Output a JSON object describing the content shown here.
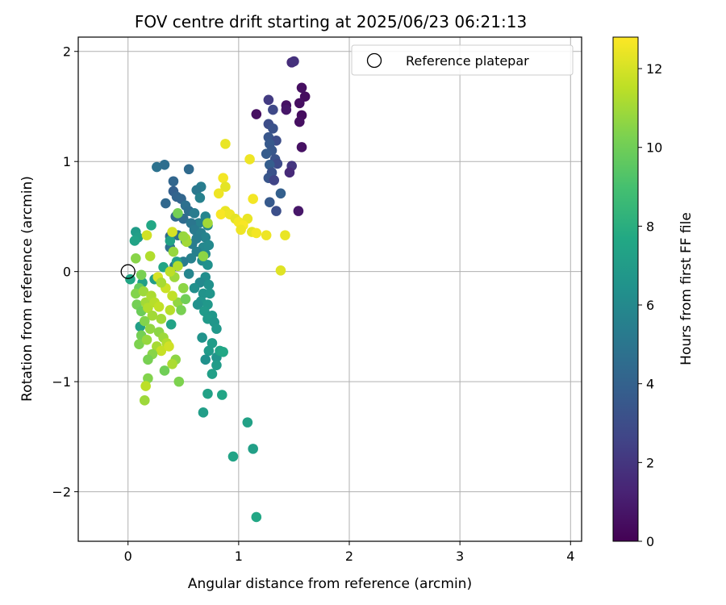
{
  "chart_data": {
    "type": "scatter",
    "title": "FOV centre drift starting at 2025/06/23 06:21:13",
    "xlabel": "Angular distance from reference (arcmin)",
    "ylabel": "Rotation from reference (arcmin)",
    "xlim": [
      -0.45,
      4.1
    ],
    "ylim": [
      -2.45,
      2.13
    ],
    "xticks": [
      0,
      1,
      2,
      3,
      4
    ],
    "xtick_labels": [
      "0",
      "1",
      "2",
      "3",
      "4"
    ],
    "yticks": [
      -2,
      -1,
      0,
      1,
      2
    ],
    "ytick_labels": [
      "−2",
      "−1",
      "0",
      "1",
      "2"
    ],
    "grid": true,
    "legend": {
      "placement": "top-right",
      "label": "Reference platepar"
    },
    "reference_point": {
      "x": 0,
      "y": 0
    },
    "colorbar": {
      "label": "Hours from first FF file",
      "min": 0,
      "max": 12.8,
      "ticks": [
        0,
        2,
        4,
        6,
        8,
        10,
        12
      ],
      "tick_labels": [
        "0",
        "2",
        "4",
        "6",
        "8",
        "10",
        "12"
      ],
      "colormap": "viridis"
    },
    "points": [
      {
        "x": 1.48,
        "y": 1.9,
        "c": 1.6
      },
      {
        "x": 1.5,
        "y": 1.91,
        "c": 1.8
      },
      {
        "x": 1.57,
        "y": 1.67,
        "c": 0.5
      },
      {
        "x": 1.6,
        "y": 1.59,
        "c": 0.4
      },
      {
        "x": 1.27,
        "y": 1.56,
        "c": 2.2
      },
      {
        "x": 1.43,
        "y": 1.51,
        "c": 0.6
      },
      {
        "x": 1.55,
        "y": 1.53,
        "c": 0.5
      },
      {
        "x": 1.43,
        "y": 1.47,
        "c": 0.8
      },
      {
        "x": 1.31,
        "y": 1.47,
        "c": 2.8
      },
      {
        "x": 1.16,
        "y": 1.43,
        "c": 0.5
      },
      {
        "x": 1.57,
        "y": 1.42,
        "c": 0.4
      },
      {
        "x": 1.55,
        "y": 1.36,
        "c": 0.5
      },
      {
        "x": 1.27,
        "y": 1.34,
        "c": 3.0
      },
      {
        "x": 1.31,
        "y": 1.3,
        "c": 3.2
      },
      {
        "x": 1.27,
        "y": 1.22,
        "c": 3.4
      },
      {
        "x": 1.34,
        "y": 1.19,
        "c": 3.0
      },
      {
        "x": 1.28,
        "y": 1.16,
        "c": 3.6
      },
      {
        "x": 1.57,
        "y": 1.13,
        "c": 0.6
      },
      {
        "x": 1.3,
        "y": 1.1,
        "c": 3.5
      },
      {
        "x": 1.25,
        "y": 1.07,
        "c": 3.7
      },
      {
        "x": 1.33,
        "y": 1.02,
        "c": 3.3
      },
      {
        "x": 1.35,
        "y": 0.98,
        "c": 2.9
      },
      {
        "x": 1.28,
        "y": 0.97,
        "c": 3.8
      },
      {
        "x": 1.48,
        "y": 0.96,
        "c": 2.0
      },
      {
        "x": 1.3,
        "y": 0.9,
        "c": 3.2
      },
      {
        "x": 1.46,
        "y": 0.9,
        "c": 1.5
      },
      {
        "x": 1.27,
        "y": 0.85,
        "c": 3.4
      },
      {
        "x": 1.32,
        "y": 0.83,
        "c": 2.6
      },
      {
        "x": 1.38,
        "y": 0.71,
        "c": 3.9
      },
      {
        "x": 1.28,
        "y": 0.63,
        "c": 3.6
      },
      {
        "x": 1.34,
        "y": 0.55,
        "c": 3.1
      },
      {
        "x": 1.54,
        "y": 0.55,
        "c": 0.8
      },
      {
        "x": 0.26,
        "y": 0.95,
        "c": 4.8
      },
      {
        "x": 0.33,
        "y": 0.97,
        "c": 4.6
      },
      {
        "x": 0.55,
        "y": 0.93,
        "c": 4.4
      },
      {
        "x": 0.41,
        "y": 0.82,
        "c": 4.2
      },
      {
        "x": 0.66,
        "y": 0.77,
        "c": 5.4
      },
      {
        "x": 0.62,
        "y": 0.74,
        "c": 5.1
      },
      {
        "x": 0.41,
        "y": 0.73,
        "c": 3.9
      },
      {
        "x": 0.44,
        "y": 0.68,
        "c": 4.1
      },
      {
        "x": 0.48,
        "y": 0.66,
        "c": 4.2
      },
      {
        "x": 0.34,
        "y": 0.62,
        "c": 4.3
      },
      {
        "x": 0.65,
        "y": 0.67,
        "c": 5.6
      },
      {
        "x": 0.52,
        "y": 0.6,
        "c": 4.7
      },
      {
        "x": 0.55,
        "y": 0.55,
        "c": 4.6
      },
      {
        "x": 0.6,
        "y": 0.53,
        "c": 5.3
      },
      {
        "x": 0.43,
        "y": 0.5,
        "c": 4.4
      },
      {
        "x": 0.5,
        "y": 0.48,
        "c": 4.5
      },
      {
        "x": 0.7,
        "y": 0.5,
        "c": 5.8
      },
      {
        "x": 0.64,
        "y": 0.44,
        "c": 5.6
      },
      {
        "x": 0.57,
        "y": 0.44,
        "c": 5.0
      },
      {
        "x": 0.72,
        "y": 0.42,
        "c": 5.9
      },
      {
        "x": 0.6,
        "y": 0.38,
        "c": 5.2
      },
      {
        "x": 0.66,
        "y": 0.35,
        "c": 5.5
      },
      {
        "x": 0.7,
        "y": 0.31,
        "c": 5.7
      },
      {
        "x": 0.62,
        "y": 0.3,
        "c": 5.4
      },
      {
        "x": 0.38,
        "y": 0.32,
        "c": 4.5
      },
      {
        "x": 0.45,
        "y": 0.33,
        "c": 4.6
      },
      {
        "x": 0.52,
        "y": 0.28,
        "c": 4.9
      },
      {
        "x": 0.58,
        "y": 0.25,
        "c": 5.3
      },
      {
        "x": 0.68,
        "y": 0.22,
        "c": 5.9
      },
      {
        "x": 0.73,
        "y": 0.24,
        "c": 6.0
      },
      {
        "x": 0.38,
        "y": 0.22,
        "c": 4.7
      },
      {
        "x": 0.62,
        "y": 0.18,
        "c": 5.5
      },
      {
        "x": 0.7,
        "y": 0.16,
        "c": 6.0
      },
      {
        "x": 0.57,
        "y": 0.12,
        "c": 5.6
      },
      {
        "x": 0.67,
        "y": 0.1,
        "c": 6.1
      },
      {
        "x": 0.72,
        "y": 0.06,
        "c": 6.4
      },
      {
        "x": 0.5,
        "y": 0.09,
        "c": 5.3
      },
      {
        "x": 0.42,
        "y": 0.05,
        "c": 5.1
      },
      {
        "x": 0.55,
        "y": -0.02,
        "c": 5.8
      },
      {
        "x": 0.7,
        "y": -0.05,
        "c": 6.2
      },
      {
        "x": 0.65,
        "y": -0.1,
        "c": 6.0
      },
      {
        "x": 0.73,
        "y": -0.12,
        "c": 6.4
      },
      {
        "x": 0.6,
        "y": -0.15,
        "c": 6.3
      },
      {
        "x": 0.68,
        "y": -0.2,
        "c": 6.5
      },
      {
        "x": 0.74,
        "y": -0.2,
        "c": 6.6
      },
      {
        "x": 0.66,
        "y": -0.27,
        "c": 6.6
      },
      {
        "x": 0.72,
        "y": -0.3,
        "c": 6.8
      },
      {
        "x": 0.63,
        "y": -0.3,
        "c": 6.4
      },
      {
        "x": 0.69,
        "y": -0.36,
        "c": 6.9
      },
      {
        "x": 0.76,
        "y": -0.4,
        "c": 6.8
      },
      {
        "x": 0.72,
        "y": -0.43,
        "c": 6.9
      },
      {
        "x": 0.78,
        "y": -0.46,
        "c": 6.7
      },
      {
        "x": 0.8,
        "y": -0.52,
        "c": 6.8
      },
      {
        "x": 0.67,
        "y": -0.6,
        "c": 6.5
      },
      {
        "x": 0.76,
        "y": -0.65,
        "c": 7.0
      },
      {
        "x": 0.73,
        "y": -0.72,
        "c": 6.9
      },
      {
        "x": 0.8,
        "y": -0.78,
        "c": 6.6
      },
      {
        "x": 0.7,
        "y": -0.8,
        "c": 6.4
      },
      {
        "x": 0.8,
        "y": -0.85,
        "c": 7.0
      },
      {
        "x": 0.76,
        "y": -0.93,
        "c": 7.2
      },
      {
        "x": 0.83,
        "y": -0.72,
        "c": 7.4
      },
      {
        "x": 0.86,
        "y": -0.73,
        "c": 7.6
      },
      {
        "x": 0.72,
        "y": -1.11,
        "c": 7.3
      },
      {
        "x": 0.85,
        "y": -1.12,
        "c": 7.5
      },
      {
        "x": 0.68,
        "y": -1.28,
        "c": 7.1
      },
      {
        "x": 1.08,
        "y": -1.37,
        "c": 7.3
      },
      {
        "x": 1.13,
        "y": -1.61,
        "c": 7.2
      },
      {
        "x": 0.95,
        "y": -1.68,
        "c": 7.4
      },
      {
        "x": 1.16,
        "y": -2.23,
        "c": 7.6
      },
      {
        "x": 0.07,
        "y": 0.36,
        "c": 7.0
      },
      {
        "x": 0.09,
        "y": 0.31,
        "c": 7.2
      },
      {
        "x": 0.06,
        "y": 0.28,
        "c": 7.4
      },
      {
        "x": 0.21,
        "y": 0.42,
        "c": 7.6
      },
      {
        "x": 0.38,
        "y": 0.28,
        "c": 7.3
      },
      {
        "x": 0.44,
        "y": 0.09,
        "c": 7.1
      },
      {
        "x": 0.32,
        "y": 0.04,
        "c": 7.5
      },
      {
        "x": 0.24,
        "y": -0.07,
        "c": 7.0
      },
      {
        "x": 0.13,
        "y": -0.1,
        "c": 7.2
      },
      {
        "x": 0.02,
        "y": -0.07,
        "c": 7.5
      },
      {
        "x": 0.11,
        "y": -0.5,
        "c": 7.2
      },
      {
        "x": 0.39,
        "y": -0.48,
        "c": 7.4
      },
      {
        "x": 0.07,
        "y": 0.12,
        "c": 10.5
      },
      {
        "x": 0.12,
        "y": -0.03,
        "c": 10.2
      },
      {
        "x": 0.1,
        "y": -0.15,
        "c": 9.8
      },
      {
        "x": 0.07,
        "y": -0.2,
        "c": 10.4
      },
      {
        "x": 0.14,
        "y": -0.18,
        "c": 10.9
      },
      {
        "x": 0.08,
        "y": -0.3,
        "c": 10.1
      },
      {
        "x": 0.12,
        "y": -0.36,
        "c": 9.9
      },
      {
        "x": 0.16,
        "y": -0.28,
        "c": 11.0
      },
      {
        "x": 0.21,
        "y": -0.22,
        "c": 11.2
      },
      {
        "x": 0.18,
        "y": -0.33,
        "c": 11.3
      },
      {
        "x": 0.24,
        "y": -0.28,
        "c": 11.4
      },
      {
        "x": 0.28,
        "y": -0.32,
        "c": 11.6
      },
      {
        "x": 0.22,
        "y": -0.4,
        "c": 11.0
      },
      {
        "x": 0.15,
        "y": -0.45,
        "c": 10.4
      },
      {
        "x": 0.2,
        "y": -0.52,
        "c": 10.7
      },
      {
        "x": 0.12,
        "y": -0.58,
        "c": 10.1
      },
      {
        "x": 0.1,
        "y": -0.66,
        "c": 10.3
      },
      {
        "x": 0.17,
        "y": -0.62,
        "c": 10.8
      },
      {
        "x": 0.28,
        "y": -0.55,
        "c": 10.6
      },
      {
        "x": 0.32,
        "y": -0.6,
        "c": 10.9
      },
      {
        "x": 0.26,
        "y": -0.68,
        "c": 11.1
      },
      {
        "x": 0.35,
        "y": -0.65,
        "c": 11.3
      },
      {
        "x": 0.3,
        "y": -0.72,
        "c": 11.7
      },
      {
        "x": 0.22,
        "y": -0.75,
        "c": 10.5
      },
      {
        "x": 0.18,
        "y": -0.8,
        "c": 10.2
      },
      {
        "x": 0.37,
        "y": -0.68,
        "c": 11.9
      },
      {
        "x": 0.43,
        "y": -0.8,
        "c": 10.6
      },
      {
        "x": 0.33,
        "y": -0.9,
        "c": 10.0
      },
      {
        "x": 0.18,
        "y": -0.97,
        "c": 10.4
      },
      {
        "x": 0.16,
        "y": -1.04,
        "c": 11.5
      },
      {
        "x": 0.15,
        "y": -1.17,
        "c": 10.9
      },
      {
        "x": 0.46,
        "y": -1.0,
        "c": 10.3
      },
      {
        "x": 0.4,
        "y": -0.84,
        "c": 11.2
      },
      {
        "x": 0.3,
        "y": -0.43,
        "c": 11.0
      },
      {
        "x": 0.38,
        "y": -0.35,
        "c": 11.4
      },
      {
        "x": 0.45,
        "y": -0.28,
        "c": 10.7
      },
      {
        "x": 0.48,
        "y": -0.35,
        "c": 10.2
      },
      {
        "x": 0.4,
        "y": -0.22,
        "c": 11.6
      },
      {
        "x": 0.34,
        "y": -0.15,
        "c": 11.8
      },
      {
        "x": 0.27,
        "y": -0.05,
        "c": 12.0
      },
      {
        "x": 0.3,
        "y": -0.1,
        "c": 11.1
      },
      {
        "x": 0.42,
        "y": -0.05,
        "c": 10.9
      },
      {
        "x": 0.45,
        "y": 0.05,
        "c": 11.3
      },
      {
        "x": 0.38,
        "y": 0.0,
        "c": 11.5
      },
      {
        "x": 0.5,
        "y": -0.15,
        "c": 10.6
      },
      {
        "x": 0.52,
        "y": -0.25,
        "c": 10.0
      },
      {
        "x": 0.41,
        "y": 0.18,
        "c": 10.8
      },
      {
        "x": 0.2,
        "y": 0.14,
        "c": 11.3
      },
      {
        "x": 0.17,
        "y": 0.33,
        "c": 11.9
      },
      {
        "x": 0.4,
        "y": 0.36,
        "c": 12.0
      },
      {
        "x": 0.52,
        "y": 0.3,
        "c": 11.2
      },
      {
        "x": 0.53,
        "y": 0.27,
        "c": 11.0
      },
      {
        "x": 0.5,
        "y": 0.32,
        "c": 10.8
      },
      {
        "x": 0.45,
        "y": 0.53,
        "c": 10.1
      },
      {
        "x": 0.68,
        "y": 0.14,
        "c": 10.6
      },
      {
        "x": 0.72,
        "y": 0.44,
        "c": 11.0
      },
      {
        "x": 0.88,
        "y": 1.16,
        "c": 12.4
      },
      {
        "x": 1.1,
        "y": 1.02,
        "c": 12.5
      },
      {
        "x": 0.86,
        "y": 0.85,
        "c": 12.6
      },
      {
        "x": 0.88,
        "y": 0.77,
        "c": 12.3
      },
      {
        "x": 0.82,
        "y": 0.71,
        "c": 12.5
      },
      {
        "x": 1.13,
        "y": 0.66,
        "c": 12.6
      },
      {
        "x": 0.88,
        "y": 0.55,
        "c": 12.4
      },
      {
        "x": 0.84,
        "y": 0.52,
        "c": 12.7
      },
      {
        "x": 0.92,
        "y": 0.52,
        "c": 12.5
      },
      {
        "x": 0.97,
        "y": 0.48,
        "c": 12.3
      },
      {
        "x": 1.0,
        "y": 0.45,
        "c": 12.6
      },
      {
        "x": 1.08,
        "y": 0.48,
        "c": 12.4
      },
      {
        "x": 1.04,
        "y": 0.42,
        "c": 12.7
      },
      {
        "x": 1.02,
        "y": 0.38,
        "c": 12.5
      },
      {
        "x": 1.12,
        "y": 0.36,
        "c": 12.3
      },
      {
        "x": 1.16,
        "y": 0.35,
        "c": 12.6
      },
      {
        "x": 1.25,
        "y": 0.33,
        "c": 12.5
      },
      {
        "x": 1.42,
        "y": 0.33,
        "c": 12.4
      },
      {
        "x": 1.38,
        "y": 0.01,
        "c": 12.2
      }
    ]
  }
}
